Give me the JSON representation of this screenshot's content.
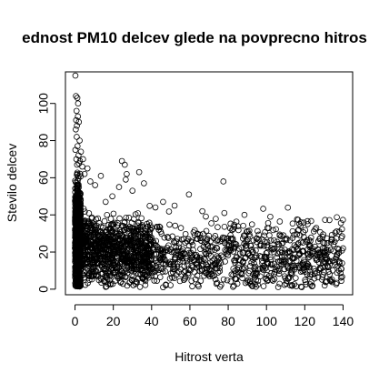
{
  "chart_data": {
    "type": "scatter",
    "title": "ednost PM10 delcev glede na povprecno hitros",
    "xlabel": "Hitrost verta",
    "ylabel": "Stevilo delcev",
    "xlim": [
      -5,
      145
    ],
    "ylim": [
      -3,
      117
    ],
    "xticks": [
      0,
      20,
      40,
      60,
      80,
      100,
      120,
      140
    ],
    "yticks": [
      0,
      20,
      40,
      60,
      80,
      100
    ],
    "marker": "open-circle",
    "marker_color": "#000000",
    "grid": false,
    "legend": "none",
    "outliers": [
      {
        "x": 0.2,
        "y": 115
      },
      {
        "x": 0.5,
        "y": 104
      },
      {
        "x": 1.2,
        "y": 103
      },
      {
        "x": 1.6,
        "y": 100
      },
      {
        "x": 0.8,
        "y": 96
      },
      {
        "x": 1.5,
        "y": 93
      },
      {
        "x": 0.6,
        "y": 91
      },
      {
        "x": 2.0,
        "y": 90
      },
      {
        "x": 1.0,
        "y": 88
      },
      {
        "x": 0.4,
        "y": 86
      },
      {
        "x": 0.9,
        "y": 82
      },
      {
        "x": 2.4,
        "y": 80
      },
      {
        "x": 1.3,
        "y": 77
      },
      {
        "x": 0.2,
        "y": 75
      },
      {
        "x": 3.1,
        "y": 74
      },
      {
        "x": 1.8,
        "y": 72
      },
      {
        "x": 0.7,
        "y": 70
      },
      {
        "x": 2.6,
        "y": 69
      },
      {
        "x": 1.1,
        "y": 67
      },
      {
        "x": 3.8,
        "y": 66
      },
      {
        "x": 24.5,
        "y": 69
      },
      {
        "x": 26.0,
        "y": 67
      },
      {
        "x": 33.5,
        "y": 63
      },
      {
        "x": 27.0,
        "y": 62
      },
      {
        "x": 13.5,
        "y": 61
      },
      {
        "x": 23.0,
        "y": 55
      },
      {
        "x": 26.5,
        "y": 59
      },
      {
        "x": 30.0,
        "y": 53
      },
      {
        "x": 36.0,
        "y": 57
      },
      {
        "x": 59.5,
        "y": 51
      },
      {
        "x": 77.5,
        "y": 58
      },
      {
        "x": 46.0,
        "y": 47
      },
      {
        "x": 52.0,
        "y": 45
      },
      {
        "x": 42.0,
        "y": 44
      },
      {
        "x": 66.5,
        "y": 42
      },
      {
        "x": 78.0,
        "y": 41
      },
      {
        "x": 88.5,
        "y": 40
      },
      {
        "x": 102.0,
        "y": 39
      },
      {
        "x": 118.0,
        "y": 36
      },
      {
        "x": 121.5,
        "y": 35
      },
      {
        "x": 126.0,
        "y": 33
      },
      {
        "x": 138.0,
        "y": 31
      },
      {
        "x": 140.0,
        "y": 22
      },
      {
        "x": 139.5,
        "y": 14
      },
      {
        "x": 139.0,
        "y": 11
      },
      {
        "x": 134.0,
        "y": 27
      },
      {
        "x": 8.0,
        "y": 58
      },
      {
        "x": 10.5,
        "y": 56
      },
      {
        "x": 19.5,
        "y": 50
      },
      {
        "x": 16.0,
        "y": 47
      },
      {
        "x": 5.0,
        "y": 62
      },
      {
        "x": 6.5,
        "y": 65
      },
      {
        "x": 4.2,
        "y": 70
      }
    ],
    "dense_cloud": {
      "description_note": "",
      "x_range": [
        0,
        140
      ],
      "y_center_by_x": [
        [
          0,
          30
        ],
        [
          5,
          22
        ],
        [
          20,
          20
        ],
        [
          60,
          17
        ],
        [
          100,
          18
        ],
        [
          140,
          18
        ]
      ],
      "y_spread": 12,
      "y_min": 0
    }
  }
}
